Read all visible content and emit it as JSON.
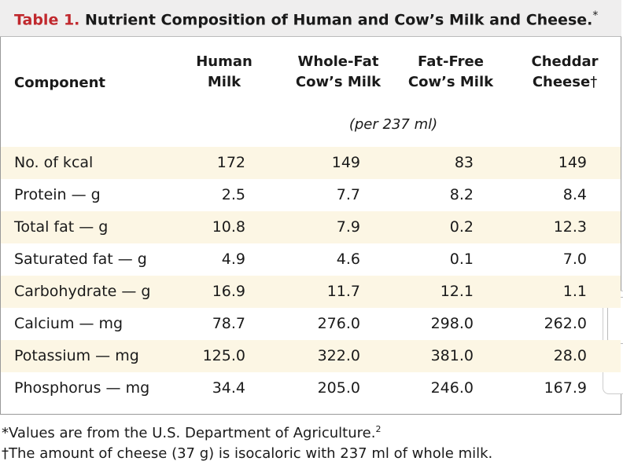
{
  "header": {
    "label": "Table 1.",
    "title": "Nutrient Composition of Human and Cow’s Milk and Cheese.",
    "marker": "*"
  },
  "table": {
    "stub_header": "Component",
    "columns": [
      {
        "lines": [
          "Human",
          "Milk"
        ]
      },
      {
        "lines": [
          "Whole-Fat",
          "Cow’s Milk"
        ]
      },
      {
        "lines": [
          "Fat-Free",
          "Cow’s Milk"
        ]
      },
      {
        "lines": [
          "Cheddar",
          "Cheese"
        ],
        "marker": "†"
      }
    ],
    "unit_note": "(per 237 ml)",
    "rows": [
      [
        "No. of kcal",
        "172",
        "149",
        "83",
        "149"
      ],
      [
        "Protein — g",
        "2.5",
        "7.7",
        "8.2",
        "8.4"
      ],
      [
        "Total fat — g",
        "10.8",
        "7.9",
        "0.2",
        "12.3"
      ],
      [
        "Saturated fat — g",
        "4.9",
        "4.6",
        "0.1",
        "7.0"
      ],
      [
        "Carbohydrate — g",
        "16.9",
        "11.7",
        "12.1",
        "1.1"
      ],
      [
        "Calcium — mg",
        "78.7",
        "276.0",
        "298.0",
        "262.0"
      ],
      [
        "Potassium — mg",
        "125.0",
        "322.0",
        "381.0",
        "28.0"
      ],
      [
        "Phosphorus — mg",
        "34.4",
        "205.0",
        "246.0",
        "167.9"
      ]
    ]
  },
  "footnotes": [
    {
      "marker": "*",
      "text": "Values are from the U.S. Department of Agriculture.",
      "ref": "2"
    },
    {
      "marker": "†",
      "text": "The amount of cheese (37 g) is isocaloric with 237 ml of whole milk."
    }
  ]
}
